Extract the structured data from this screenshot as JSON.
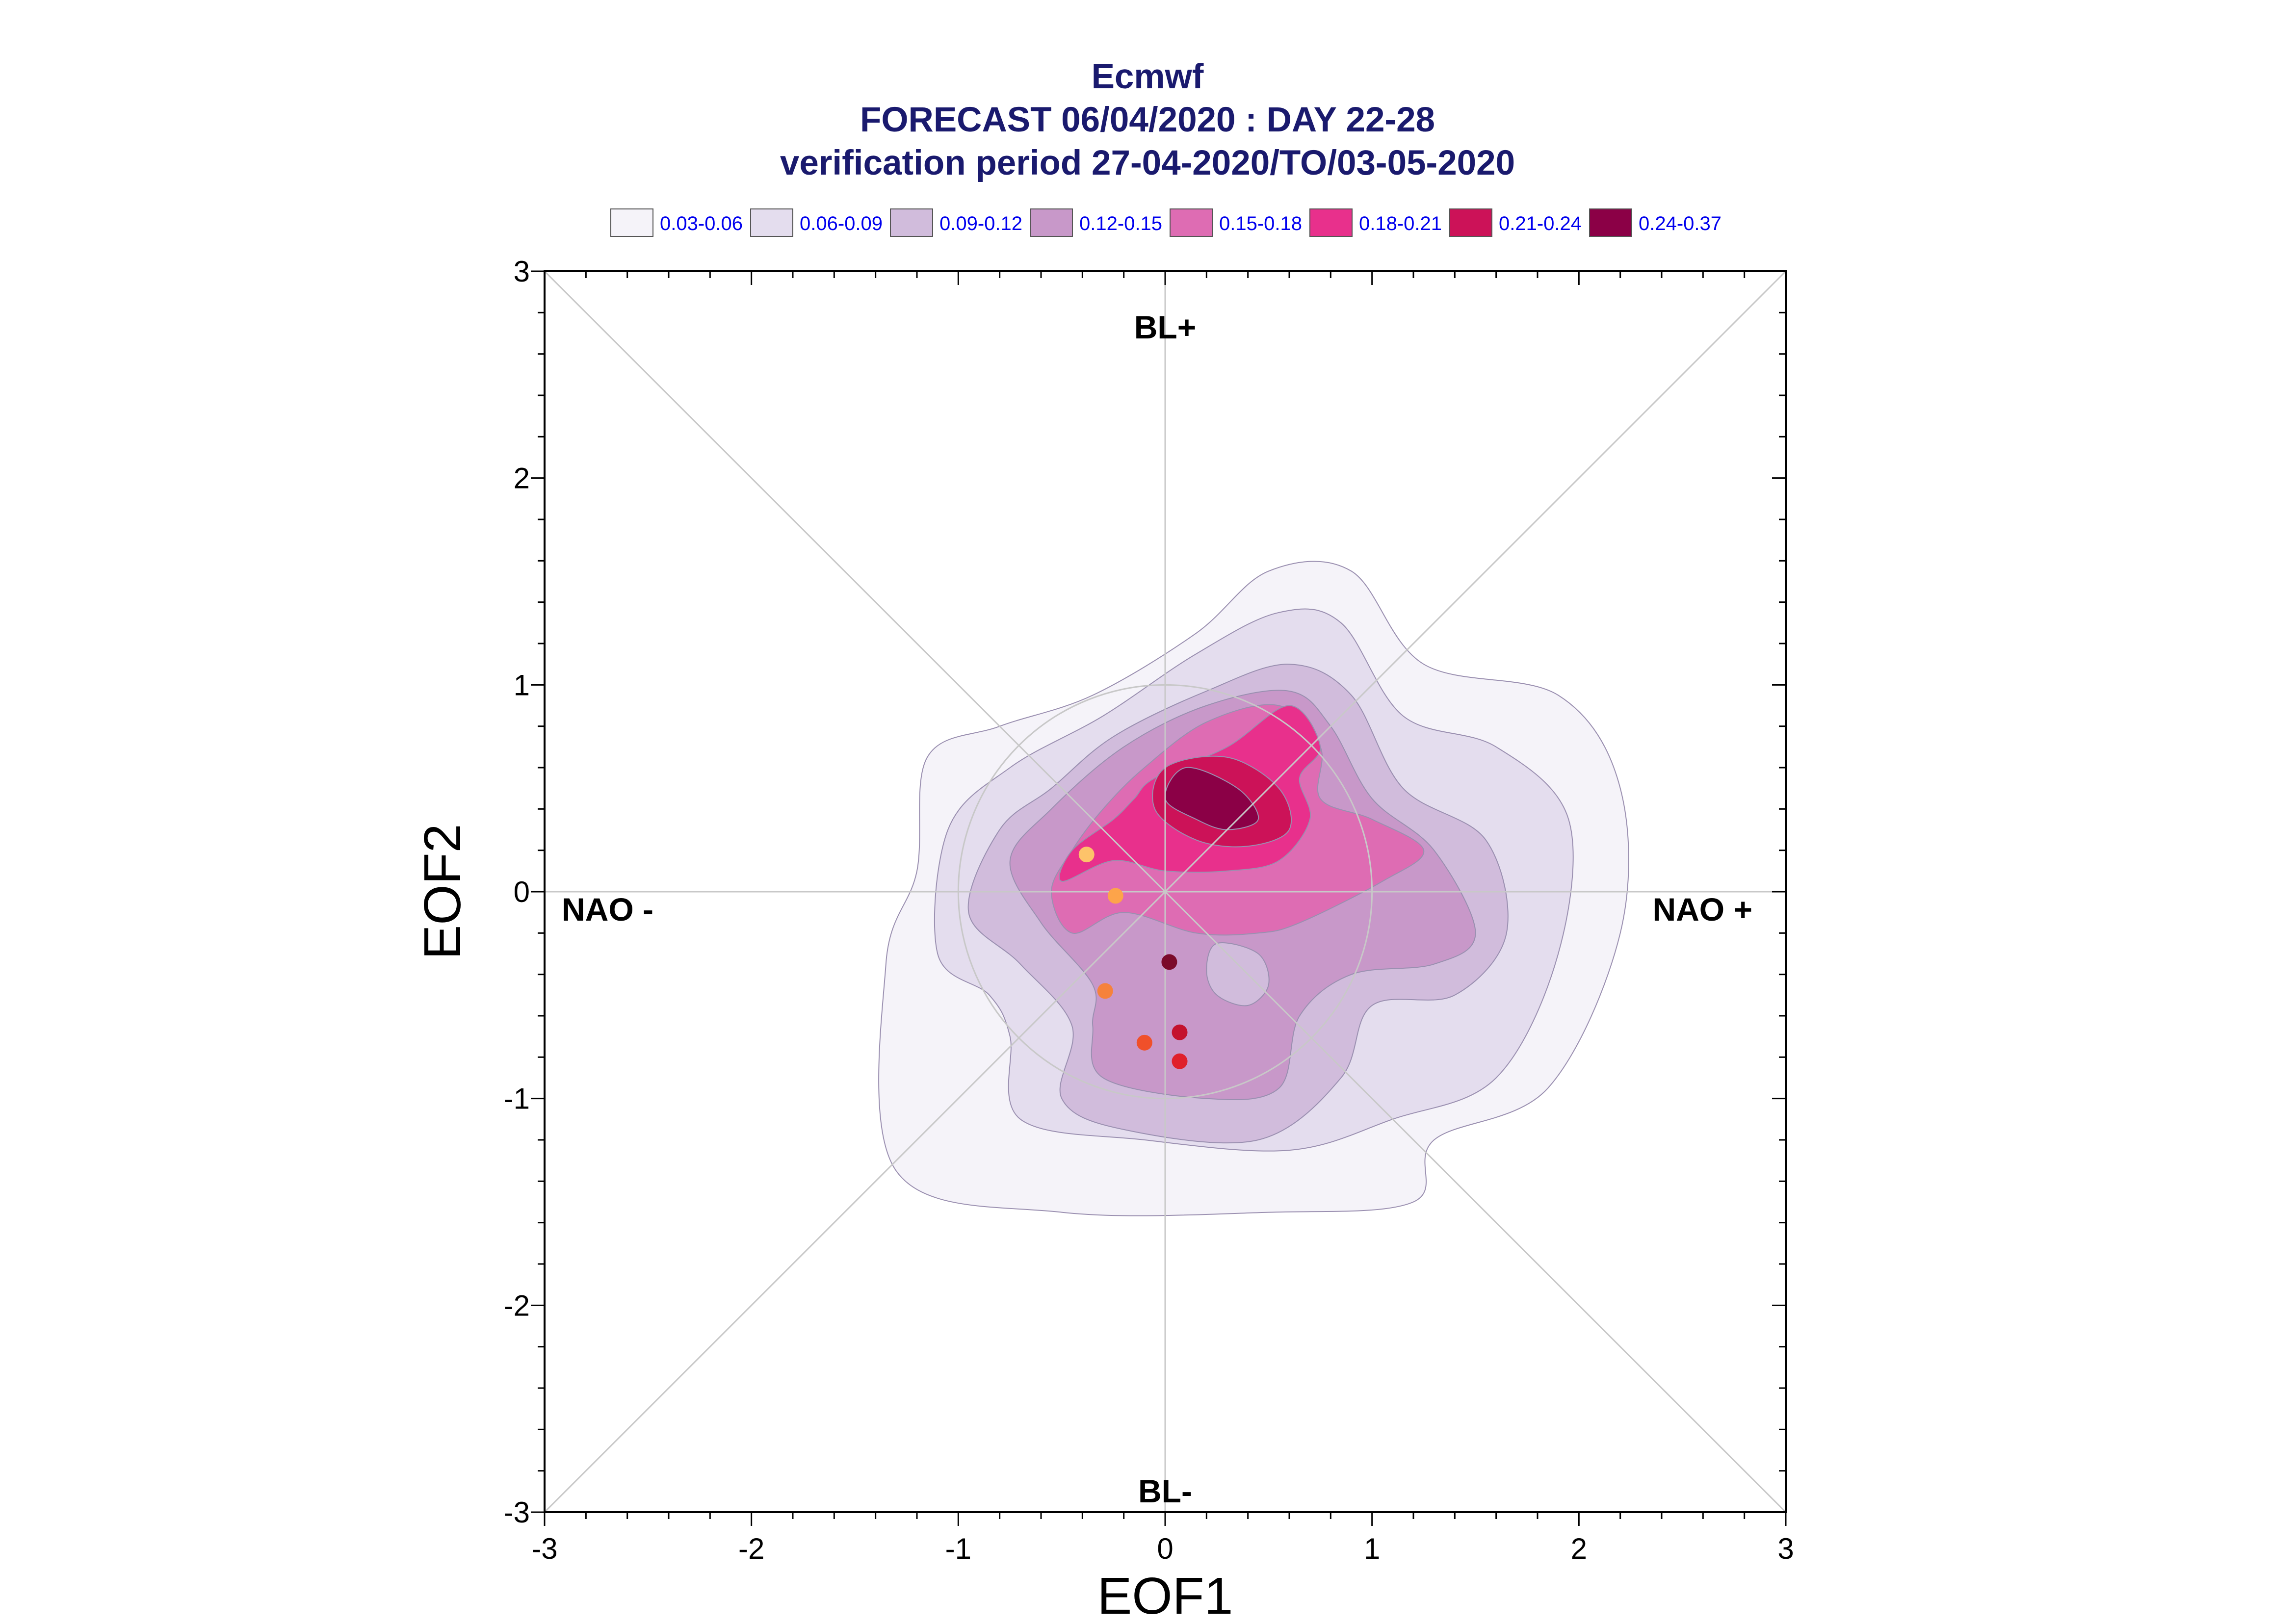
{
  "chart_data": {
    "type": "contour",
    "title_lines": [
      "Ecmwf",
      "FORECAST 06/04/2020 : DAY 22-28",
      "verification period 27-04-2020/TO/03-05-2020"
    ],
    "xlabel": "EOF1",
    "ylabel": "EOF2",
    "xlim": [
      -3,
      3
    ],
    "ylim": [
      -3,
      3
    ],
    "x_ticks": [
      "-3",
      "-2",
      "-1",
      "0",
      "1",
      "2",
      "3"
    ],
    "y_ticks": [
      "-3",
      "-2",
      "-1",
      "0",
      "1",
      "2",
      "3"
    ],
    "region_labels": {
      "top": "BL+",
      "bottom": "BL-",
      "left": "NAO -",
      "right": "NAO +"
    },
    "legend": [
      {
        "label": "0.03-0.06",
        "color": "#f5f3f9"
      },
      {
        "label": "0.06-0.09",
        "color": "#e4ddee"
      },
      {
        "label": "0.09-0.12",
        "color": "#d1bcdc"
      },
      {
        "label": "0.12-0.15",
        "color": "#c898c9"
      },
      {
        "label": "0.15-0.18",
        "color": "#de6cb3"
      },
      {
        "label": "0.18-0.21",
        "color": "#e8308c"
      },
      {
        "label": "0.21-0.24",
        "color": "#cc1258"
      },
      {
        "label": "0.24-0.37",
        "color": "#8b0046"
      }
    ],
    "density_contours": [
      {
        "level": "0.03-0.06",
        "points": [
          [
            -0.35,
            0.95
          ],
          [
            0.15,
            1.25
          ],
          [
            0.5,
            1.55
          ],
          [
            0.9,
            1.55
          ],
          [
            1.25,
            1.1
          ],
          [
            1.9,
            0.95
          ],
          [
            2.2,
            0.5
          ],
          [
            2.2,
            -0.2
          ],
          [
            1.85,
            -0.95
          ],
          [
            1.3,
            -1.2
          ],
          [
            1.2,
            -1.5
          ],
          [
            0.5,
            -1.55
          ],
          [
            -0.5,
            -1.55
          ],
          [
            -1.3,
            -1.35
          ],
          [
            -1.35,
            -0.35
          ],
          [
            -1.2,
            0.1
          ],
          [
            -1.15,
            0.65
          ],
          [
            -0.8,
            0.8
          ]
        ]
      },
      {
        "level": "0.06-0.09",
        "points": [
          [
            -0.3,
            0.85
          ],
          [
            0.15,
            1.15
          ],
          [
            0.55,
            1.35
          ],
          [
            0.85,
            1.3
          ],
          [
            1.15,
            0.85
          ],
          [
            1.6,
            0.7
          ],
          [
            1.95,
            0.35
          ],
          [
            1.9,
            -0.3
          ],
          [
            1.6,
            -0.9
          ],
          [
            1.1,
            -1.1
          ],
          [
            0.6,
            -1.25
          ],
          [
            -0.1,
            -1.2
          ],
          [
            -0.7,
            -1.1
          ],
          [
            -0.75,
            -0.7
          ],
          [
            -0.85,
            -0.5
          ],
          [
            -1.1,
            -0.3
          ],
          [
            -1.05,
            0.3
          ],
          [
            -0.75,
            0.6
          ]
        ]
      },
      {
        "level": "0.09-0.12",
        "points": [
          [
            -0.25,
            0.75
          ],
          [
            0.2,
            0.97
          ],
          [
            0.6,
            1.1
          ],
          [
            0.9,
            0.95
          ],
          [
            1.15,
            0.5
          ],
          [
            1.55,
            0.25
          ],
          [
            1.65,
            -0.2
          ],
          [
            1.4,
            -0.5
          ],
          [
            1.0,
            -0.55
          ],
          [
            0.85,
            -0.9
          ],
          [
            0.45,
            -1.2
          ],
          [
            -0.2,
            -1.15
          ],
          [
            -0.5,
            -1.0
          ],
          [
            -0.45,
            -0.65
          ],
          [
            -0.7,
            -0.35
          ],
          [
            -0.95,
            -0.1
          ],
          [
            -0.8,
            0.3
          ],
          [
            -0.55,
            0.5
          ]
        ]
      },
      {
        "level": "0.12-0.15",
        "points": [
          [
            -0.2,
            0.7
          ],
          [
            0.2,
            0.9
          ],
          [
            0.6,
            0.97
          ],
          [
            0.8,
            0.8
          ],
          [
            1.0,
            0.45
          ],
          [
            1.3,
            0.2
          ],
          [
            1.5,
            -0.2
          ],
          [
            1.3,
            -0.35
          ],
          [
            0.9,
            -0.4
          ],
          [
            0.65,
            -0.6
          ],
          [
            0.55,
            -0.95
          ],
          [
            0.2,
            -1.0
          ],
          [
            -0.3,
            -0.9
          ],
          [
            -0.35,
            -0.65
          ],
          [
            -0.35,
            -0.45
          ],
          [
            -0.6,
            -0.15
          ],
          [
            -0.75,
            0.15
          ],
          [
            -0.55,
            0.4
          ]
        ]
      },
      {
        "level": "0.15-0.18",
        "points": [
          [
            -0.1,
            0.6
          ],
          [
            0.2,
            0.82
          ],
          [
            0.55,
            0.9
          ],
          [
            0.75,
            0.7
          ],
          [
            0.75,
            0.45
          ],
          [
            1.0,
            0.35
          ],
          [
            1.25,
            0.2
          ],
          [
            1.05,
            0.05
          ],
          [
            0.65,
            -0.15
          ],
          [
            0.45,
            -0.2
          ],
          [
            0.15,
            -0.2
          ],
          [
            -0.2,
            -0.1
          ],
          [
            -0.45,
            -0.2
          ],
          [
            -0.55,
            0.0
          ],
          [
            -0.45,
            0.2
          ],
          [
            -0.3,
            0.4
          ]
        ]
      },
      {
        "level": "0.18-0.21",
        "points": [
          [
            -0.05,
            0.55
          ],
          [
            0.3,
            0.7
          ],
          [
            0.6,
            0.9
          ],
          [
            0.75,
            0.7
          ],
          [
            0.65,
            0.55
          ],
          [
            0.7,
            0.35
          ],
          [
            0.55,
            0.15
          ],
          [
            0.3,
            0.1
          ],
          [
            0.0,
            0.1
          ],
          [
            -0.25,
            0.15
          ],
          [
            -0.5,
            0.05
          ],
          [
            -0.45,
            0.2
          ],
          [
            -0.25,
            0.35
          ],
          [
            -0.15,
            0.45
          ]
        ]
      },
      {
        "level": "0.21-0.24",
        "points": [
          [
            0.0,
            0.6
          ],
          [
            0.3,
            0.65
          ],
          [
            0.55,
            0.5
          ],
          [
            0.6,
            0.3
          ],
          [
            0.4,
            0.22
          ],
          [
            0.15,
            0.25
          ],
          [
            -0.05,
            0.4
          ]
        ]
      },
      {
        "level": "0.24-0.37",
        "points": [
          [
            0.1,
            0.6
          ],
          [
            0.35,
            0.5
          ],
          [
            0.45,
            0.35
          ],
          [
            0.3,
            0.3
          ],
          [
            0.15,
            0.35
          ],
          [
            0.0,
            0.45
          ]
        ]
      }
    ],
    "contour_holes": [
      {
        "points": [
          [
            0.25,
            -0.25
          ],
          [
            0.45,
            -0.3
          ],
          [
            0.5,
            -0.45
          ],
          [
            0.4,
            -0.55
          ],
          [
            0.25,
            -0.5
          ],
          [
            0.2,
            -0.38
          ]
        ]
      }
    ],
    "points": [
      {
        "x": -0.38,
        "y": 0.18,
        "color": "#fdc36a"
      },
      {
        "x": -0.24,
        "y": -0.02,
        "color": "#fda44a"
      },
      {
        "x": -0.29,
        "y": -0.48,
        "color": "#f6823c"
      },
      {
        "x": -0.1,
        "y": -0.73,
        "color": "#f0502a"
      },
      {
        "x": 0.02,
        "y": -0.34,
        "color": "#7b0a2a"
      },
      {
        "x": 0.07,
        "y": -0.68,
        "color": "#c4122e"
      },
      {
        "x": 0.07,
        "y": -0.82,
        "color": "#e0202c"
      }
    ],
    "grid": false
  }
}
